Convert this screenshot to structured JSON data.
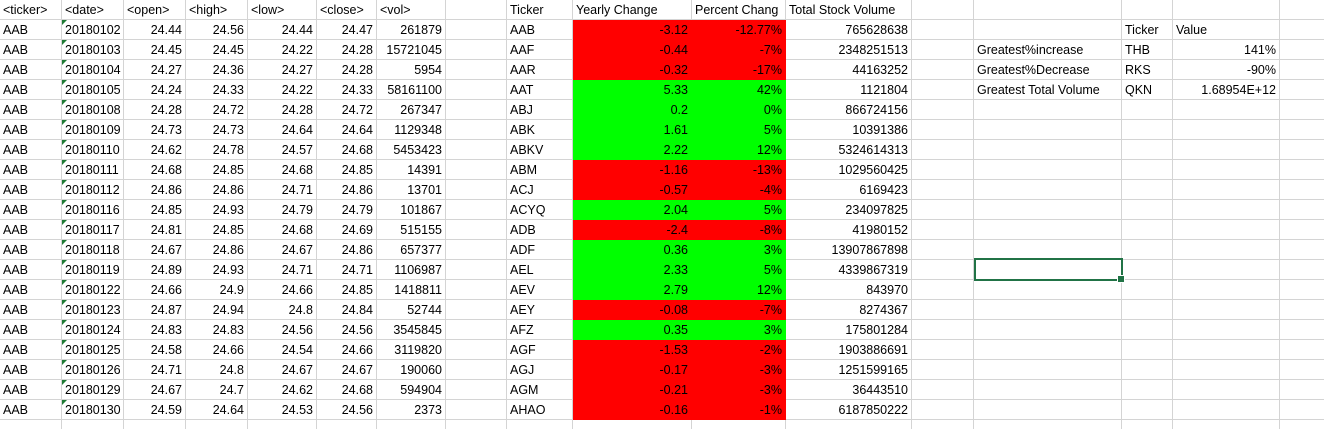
{
  "raw_headers": [
    "<ticker>",
    "<date>",
    "<open>",
    "<high>",
    "<low>",
    "<close>",
    "<vol>"
  ],
  "raw_rows": [
    [
      "AAB",
      "20180102",
      "24.44",
      "24.56",
      "24.44",
      "24.47",
      "261879"
    ],
    [
      "AAB",
      "20180103",
      "24.45",
      "24.45",
      "24.22",
      "24.28",
      "15721045"
    ],
    [
      "AAB",
      "20180104",
      "24.27",
      "24.36",
      "24.27",
      "24.28",
      "5954"
    ],
    [
      "AAB",
      "20180105",
      "24.24",
      "24.33",
      "24.22",
      "24.33",
      "58161100"
    ],
    [
      "AAB",
      "20180108",
      "24.28",
      "24.72",
      "24.28",
      "24.72",
      "267347"
    ],
    [
      "AAB",
      "20180109",
      "24.73",
      "24.73",
      "24.64",
      "24.64",
      "1129348"
    ],
    [
      "AAB",
      "20180110",
      "24.62",
      "24.78",
      "24.57",
      "24.68",
      "5453423"
    ],
    [
      "AAB",
      "20180111",
      "24.68",
      "24.85",
      "24.68",
      "24.85",
      "14391"
    ],
    [
      "AAB",
      "20180112",
      "24.86",
      "24.86",
      "24.71",
      "24.86",
      "13701"
    ],
    [
      "AAB",
      "20180116",
      "24.85",
      "24.93",
      "24.79",
      "24.79",
      "101867"
    ],
    [
      "AAB",
      "20180117",
      "24.81",
      "24.85",
      "24.68",
      "24.69",
      "515155"
    ],
    [
      "AAB",
      "20180118",
      "24.67",
      "24.86",
      "24.67",
      "24.86",
      "657377"
    ],
    [
      "AAB",
      "20180119",
      "24.89",
      "24.93",
      "24.71",
      "24.71",
      "1106987"
    ],
    [
      "AAB",
      "20180122",
      "24.66",
      "24.9",
      "24.66",
      "24.85",
      "1418811"
    ],
    [
      "AAB",
      "20180123",
      "24.87",
      "24.94",
      "24.8",
      "24.84",
      "52744"
    ],
    [
      "AAB",
      "20180124",
      "24.83",
      "24.83",
      "24.56",
      "24.56",
      "3545845"
    ],
    [
      "AAB",
      "20180125",
      "24.58",
      "24.66",
      "24.54",
      "24.66",
      "3119820"
    ],
    [
      "AAB",
      "20180126",
      "24.71",
      "24.8",
      "24.67",
      "24.67",
      "190060"
    ],
    [
      "AAB",
      "20180129",
      "24.67",
      "24.7",
      "24.62",
      "24.68",
      "594904"
    ],
    [
      "AAB",
      "20180130",
      "24.59",
      "24.64",
      "24.53",
      "24.56",
      "2373"
    ]
  ],
  "summary_headers": [
    "Ticker",
    "Yearly Change",
    "Percent Chang",
    "Total Stock Volume"
  ],
  "summary_rows": [
    {
      "ticker": "AAB",
      "change": "-3.12",
      "percent": "-12.77%",
      "volume": "765628638",
      "status": "negative"
    },
    {
      "ticker": "AAF",
      "change": "-0.44",
      "percent": "-7%",
      "volume": "2348251513",
      "status": "negative"
    },
    {
      "ticker": "AAR",
      "change": "-0.32",
      "percent": "-17%",
      "volume": "44163252",
      "status": "negative"
    },
    {
      "ticker": "AAT",
      "change": "5.33",
      "percent": "42%",
      "volume": "1121804",
      "status": "positive"
    },
    {
      "ticker": "ABJ",
      "change": "0.2",
      "percent": "0%",
      "volume": "866724156",
      "status": "positive"
    },
    {
      "ticker": "ABK",
      "change": "1.61",
      "percent": "5%",
      "volume": "10391386",
      "status": "positive"
    },
    {
      "ticker": "ABKV",
      "change": "2.22",
      "percent": "12%",
      "volume": "5324614313",
      "status": "positive"
    },
    {
      "ticker": "ABM",
      "change": "-1.16",
      "percent": "-13%",
      "volume": "1029560425",
      "status": "negative"
    },
    {
      "ticker": "ACJ",
      "change": "-0.57",
      "percent": "-4%",
      "volume": "6169423",
      "status": "negative"
    },
    {
      "ticker": "ACYQ",
      "change": "2.04",
      "percent": "5%",
      "volume": "234097825",
      "status": "positive"
    },
    {
      "ticker": "ADB",
      "change": "-2.4",
      "percent": "-8%",
      "volume": "41980152",
      "status": "negative"
    },
    {
      "ticker": "ADF",
      "change": "0.36",
      "percent": "3%",
      "volume": "13907867898",
      "status": "positive"
    },
    {
      "ticker": "AEL",
      "change": "2.33",
      "percent": "5%",
      "volume": "4339867319",
      "status": "positive"
    },
    {
      "ticker": "AEV",
      "change": "2.79",
      "percent": "12%",
      "volume": "843970",
      "status": "positive"
    },
    {
      "ticker": "AEY",
      "change": "-0.08",
      "percent": "-7%",
      "volume": "8274367",
      "status": "negative"
    },
    {
      "ticker": "AFZ",
      "change": "0.35",
      "percent": "3%",
      "volume": "175801284",
      "status": "positive"
    },
    {
      "ticker": "AGF",
      "change": "-1.53",
      "percent": "-2%",
      "volume": "1903886691",
      "status": "negative"
    },
    {
      "ticker": "AGJ",
      "change": "-0.17",
      "percent": "-3%",
      "volume": "1251599165",
      "status": "negative"
    },
    {
      "ticker": "AGM",
      "change": "-0.21",
      "percent": "-3%",
      "volume": "36443510",
      "status": "negative"
    },
    {
      "ticker": "AHAO",
      "change": "-0.16",
      "percent": "-1%",
      "volume": "6187850222",
      "status": "negative"
    }
  ],
  "greatest_headers": [
    "Ticker",
    "Value"
  ],
  "greatest_rows": [
    {
      "label": "Greatest%increase",
      "ticker": "THB",
      "value": "141%"
    },
    {
      "label": "Greatest%Decrease",
      "ticker": "RKS",
      "value": "-90%"
    },
    {
      "label": "Greatest Total Volume",
      "ticker": "QKN",
      "value": "1.68954E+12"
    }
  ],
  "colors": {
    "positive": "#00ff00",
    "negative": "#ff0000",
    "selection": "#217346",
    "gridline": "#d4d4d4"
  }
}
